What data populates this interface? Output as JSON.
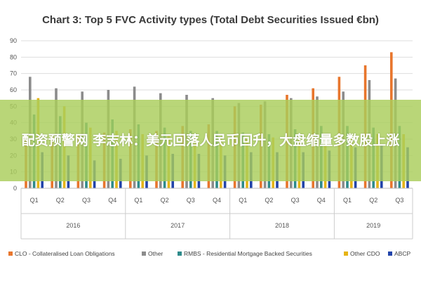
{
  "chart_data": {
    "type": "bar",
    "title": "Chart 3: Top 5 FVC Activity types (Total Debt Securities Issued €bn)",
    "xlabel": "",
    "ylabel": "",
    "ylim": [
      0,
      90
    ],
    "yticks": [
      "0",
      "10",
      "20",
      "30",
      "40",
      "50",
      "60",
      "70",
      "80",
      "90"
    ],
    "grid": true,
    "legend_position": "bottom",
    "categories": [
      "Q1",
      "Q2",
      "Q3",
      "Q4",
      "Q1",
      "Q2",
      "Q3",
      "Q4",
      "Q1",
      "Q2",
      "Q3",
      "Q4",
      "Q1",
      "Q2",
      "Q3"
    ],
    "years": [
      {
        "label": "2016",
        "count": 4
      },
      {
        "label": "2017",
        "count": 4
      },
      {
        "label": "2018",
        "count": 4
      },
      {
        "label": "2019",
        "count": 3
      }
    ],
    "series": [
      {
        "name": "CLO - Collateralised Loan Obligations",
        "color": "#e8762d",
        "values": [
          30,
          32,
          33,
          34,
          36,
          35,
          38,
          39,
          50,
          51,
          57,
          61,
          68,
          75,
          83
        ]
      },
      {
        "name": "Other",
        "color": "#8c8c8c",
        "values": [
          68,
          61,
          59,
          60,
          62,
          58,
          57,
          55,
          52,
          53,
          55,
          56,
          59,
          66,
          67
        ]
      },
      {
        "name": "RMBS - Residential Mortgage Backed Securities",
        "color": "#2e8b8b",
        "values": [
          45,
          44,
          40,
          42,
          39,
          37,
          35,
          35,
          34,
          33,
          36,
          38,
          38,
          37,
          38
        ]
      },
      {
        "name": "Other CDO",
        "color": "#e6b416",
        "values": [
          55,
          50,
          37,
          35,
          33,
          32,
          31,
          30,
          30,
          31,
          31,
          32,
          32,
          33,
          33
        ]
      },
      {
        "name": "ABCP",
        "color": "#2244aa",
        "values": [
          22,
          20,
          17,
          18,
          20,
          21,
          21,
          20,
          22,
          22,
          22,
          23,
          25,
          26,
          25
        ]
      }
    ]
  },
  "overlay": {
    "text": "配资预警网 李志林：美元回落人民币回升，大盘缩量多数股上涨"
  }
}
